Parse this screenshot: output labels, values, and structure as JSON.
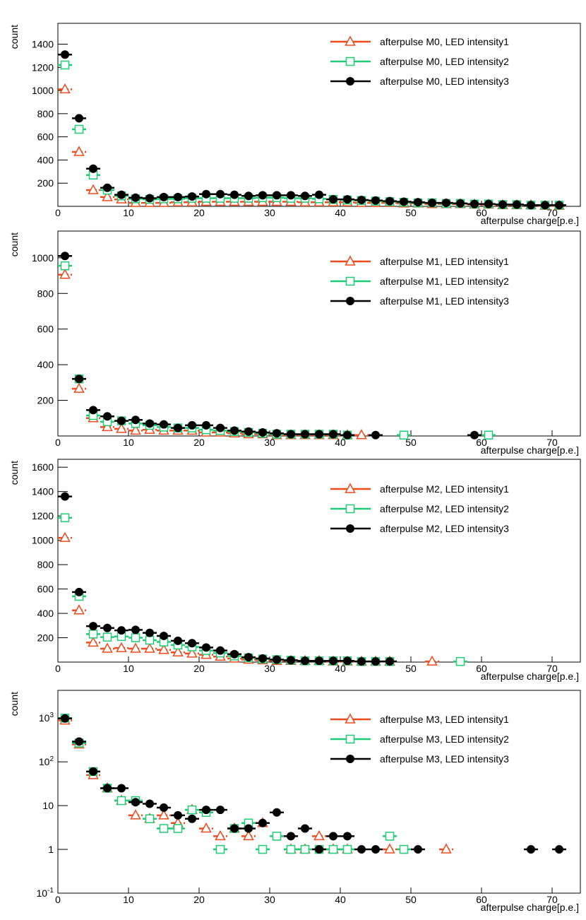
{
  "chart_data": [
    {
      "type": "scatter",
      "xlabel": "afterpulse charge[p.e.]",
      "ylabel": "count",
      "xlim": [
        0,
        74
      ],
      "xticks": [
        0,
        10,
        20,
        30,
        40,
        50,
        60,
        70
      ],
      "ylim": [
        0,
        1580
      ],
      "yticks": [
        200,
        400,
        600,
        800,
        1000,
        1200,
        1400
      ],
      "log_y": false,
      "bin_width": 2,
      "legend": "upper right",
      "x": [
        1,
        3,
        5,
        7,
        9,
        11,
        13,
        15,
        17,
        19,
        21,
        23,
        25,
        27,
        29,
        31,
        33,
        35,
        37,
        39,
        41,
        43,
        45,
        47,
        49,
        51,
        53,
        55,
        57,
        59,
        61,
        63,
        65,
        67,
        69,
        71
      ],
      "series": [
        {
          "name": "afterpulse M0, LED intensity1",
          "color": "#f04a1e",
          "marker": "triangle-open",
          "values": [
            1010,
            470,
            140,
            80,
            60,
            30,
            30,
            30,
            35,
            35,
            40,
            40,
            40,
            40,
            40,
            40,
            40,
            35,
            35,
            35,
            35,
            30,
            30,
            30,
            25,
            25,
            20,
            20,
            20,
            15,
            15,
            10,
            10,
            10,
            5,
            5
          ]
        },
        {
          "name": "afterpulse M0, LED intensity2",
          "color": "#1fcc74",
          "marker": "square-open",
          "values": [
            1220,
            665,
            270,
            140,
            90,
            65,
            60,
            65,
            65,
            70,
            70,
            70,
            70,
            70,
            75,
            75,
            70,
            70,
            65,
            60,
            55,
            50,
            45,
            40,
            35,
            30,
            30,
            25,
            25,
            20,
            20,
            15,
            15,
            10,
            10,
            10
          ]
        },
        {
          "name": "afterpulse M0, LED intensity3",
          "color": "#000000",
          "marker": "circle",
          "values": [
            1310,
            760,
            325,
            160,
            100,
            75,
            70,
            80,
            80,
            85,
            105,
            105,
            100,
            90,
            95,
            95,
            95,
            90,
            100,
            60,
            60,
            55,
            50,
            45,
            40,
            35,
            30,
            30,
            25,
            20,
            20,
            15,
            15,
            10,
            10,
            10
          ]
        }
      ]
    },
    {
      "type": "scatter",
      "xlabel": "afterpulse charge[p.e.]",
      "ylabel": "count",
      "xlim": [
        0,
        74
      ],
      "xticks": [
        0,
        10,
        20,
        30,
        40,
        50,
        60,
        70
      ],
      "ylim": [
        0,
        1150
      ],
      "yticks": [
        200,
        400,
        600,
        800,
        1000
      ],
      "log_y": false,
      "bin_width": 2,
      "legend": "upper right",
      "x": [
        1,
        3,
        5,
        7,
        9,
        11,
        13,
        15,
        17,
        19,
        21,
        23,
        25,
        27,
        29,
        31,
        33,
        35,
        37,
        39,
        41,
        43,
        45,
        47,
        49,
        51,
        53,
        55,
        57,
        59,
        61,
        63,
        65,
        67,
        69,
        71
      ],
      "series": [
        {
          "name": "afterpulse M1, LED intensity1",
          "color": "#f04a1e",
          "marker": "triangle-open",
          "values": [
            905,
            265,
            100,
            50,
            40,
            30,
            35,
            30,
            30,
            30,
            20,
            20,
            15,
            10,
            10,
            5,
            5,
            5,
            5,
            5,
            5,
            5,
            null,
            null,
            null,
            null,
            null,
            null,
            null,
            null,
            null,
            null,
            null,
            null,
            null,
            null
          ]
        },
        {
          "name": "afterpulse M1, LED intensity2",
          "color": "#1fcc74",
          "marker": "square-open",
          "values": [
            955,
            320,
            115,
            80,
            85,
            70,
            60,
            50,
            45,
            45,
            35,
            30,
            25,
            20,
            15,
            10,
            10,
            10,
            10,
            10,
            5,
            null,
            null,
            null,
            5,
            null,
            null,
            null,
            null,
            null,
            5,
            null,
            null,
            null,
            null,
            null
          ]
        },
        {
          "name": "afterpulse M1, LED intensity3",
          "color": "#000000",
          "marker": "circle",
          "values": [
            1010,
            320,
            145,
            110,
            85,
            90,
            70,
            65,
            45,
            60,
            60,
            45,
            30,
            25,
            20,
            15,
            10,
            10,
            10,
            10,
            5,
            null,
            5,
            null,
            null,
            null,
            null,
            null,
            null,
            5,
            null,
            null,
            null,
            null,
            null,
            null
          ]
        }
      ]
    },
    {
      "type": "scatter",
      "xlabel": "afterpulse charge[p.e.]",
      "ylabel": "count",
      "xlim": [
        0,
        74
      ],
      "xticks": [
        0,
        10,
        20,
        30,
        40,
        50,
        60,
        70
      ],
      "ylim": [
        0,
        1665
      ],
      "yticks": [
        200,
        400,
        600,
        800,
        1000,
        1200,
        1400,
        1600
      ],
      "log_y": false,
      "bin_width": 2,
      "legend": "upper right",
      "x": [
        1,
        3,
        5,
        7,
        9,
        11,
        13,
        15,
        17,
        19,
        21,
        23,
        25,
        27,
        29,
        31,
        33,
        35,
        37,
        39,
        41,
        43,
        45,
        47,
        49,
        51,
        53,
        55,
        57,
        59,
        61,
        63,
        65,
        67,
        69,
        71
      ],
      "series": [
        {
          "name": "afterpulse M2, LED intensity1",
          "color": "#f04a1e",
          "marker": "triangle-open",
          "values": [
            1020,
            425,
            160,
            110,
            115,
            110,
            110,
            100,
            80,
            70,
            60,
            45,
            30,
            20,
            15,
            10,
            10,
            10,
            10,
            5,
            5,
            5,
            5,
            5,
            null,
            null,
            5,
            null,
            null,
            null,
            null,
            null,
            null,
            null,
            null,
            null
          ]
        },
        {
          "name": "afterpulse M2, LED intensity2",
          "color": "#1fcc74",
          "marker": "square-open",
          "values": [
            1185,
            540,
            230,
            205,
            210,
            200,
            180,
            165,
            140,
            125,
            95,
            75,
            50,
            35,
            25,
            20,
            15,
            10,
            10,
            10,
            10,
            5,
            5,
            5,
            null,
            null,
            null,
            null,
            5,
            null,
            null,
            null,
            null,
            null,
            null,
            null
          ]
        },
        {
          "name": "afterpulse M2, LED intensity3",
          "color": "#000000",
          "marker": "circle",
          "values": [
            1360,
            575,
            295,
            280,
            260,
            265,
            240,
            215,
            175,
            155,
            120,
            95,
            65,
            40,
            30,
            20,
            15,
            10,
            10,
            10,
            10,
            5,
            5,
            5,
            null,
            null,
            null,
            null,
            null,
            null,
            null,
            null,
            null,
            null,
            null,
            null
          ]
        }
      ]
    },
    {
      "type": "scatter",
      "xlabel": "afterpulse charge[p.e.]",
      "ylabel": "count",
      "xlim": [
        0,
        74
      ],
      "xticks": [
        0,
        10,
        20,
        30,
        40,
        50,
        60,
        70
      ],
      "ylim": [
        0.1,
        4300
      ],
      "yticks": [
        {
          "value": 0.1,
          "label": "10^-1"
        },
        1,
        10,
        {
          "value": 100,
          "label": "10^2"
        },
        {
          "value": 1000,
          "label": "10^3"
        }
      ],
      "log_y": true,
      "bin_width": 2,
      "legend": "upper right",
      "x": [
        1,
        3,
        5,
        7,
        9,
        11,
        13,
        15,
        17,
        19,
        21,
        23,
        25,
        27,
        29,
        31,
        33,
        35,
        37,
        39,
        41,
        43,
        45,
        47,
        49,
        51,
        53,
        55,
        57,
        59,
        61,
        63,
        65,
        67,
        69,
        71
      ],
      "series": [
        {
          "name": "afterpulse M3, LED intensity1",
          "color": "#f04a1e",
          "marker": "triangle-open",
          "values": [
            880,
            250,
            50,
            25,
            13,
            6,
            5,
            6,
            4,
            8,
            3,
            2,
            3,
            2,
            4,
            null,
            1,
            1,
            2,
            1,
            1,
            null,
            null,
            1,
            null,
            null,
            null,
            1,
            null,
            null,
            null,
            null,
            null,
            null,
            null,
            null
          ]
        },
        {
          "name": "afterpulse M3, LED intensity2",
          "color": "#1fcc74",
          "marker": "square-open",
          "values": [
            1000,
            270,
            60,
            25,
            13,
            13,
            5,
            3,
            3,
            8,
            7,
            1,
            3,
            4,
            1,
            2,
            1,
            1,
            1,
            1,
            1,
            null,
            null,
            2,
            1,
            null,
            null,
            null,
            null,
            null,
            null,
            null,
            null,
            null,
            null,
            null
          ]
        },
        {
          "name": "afterpulse M3, LED intensity3",
          "color": "#000000",
          "marker": "circle",
          "values": [
            980,
            290,
            60,
            25,
            25,
            12,
            11,
            9,
            6,
            5,
            8,
            8,
            3,
            3,
            4,
            7,
            2,
            3,
            1,
            2,
            2,
            1,
            1,
            null,
            null,
            1,
            null,
            null,
            null,
            null,
            null,
            null,
            null,
            1,
            null,
            1
          ]
        }
      ]
    }
  ]
}
